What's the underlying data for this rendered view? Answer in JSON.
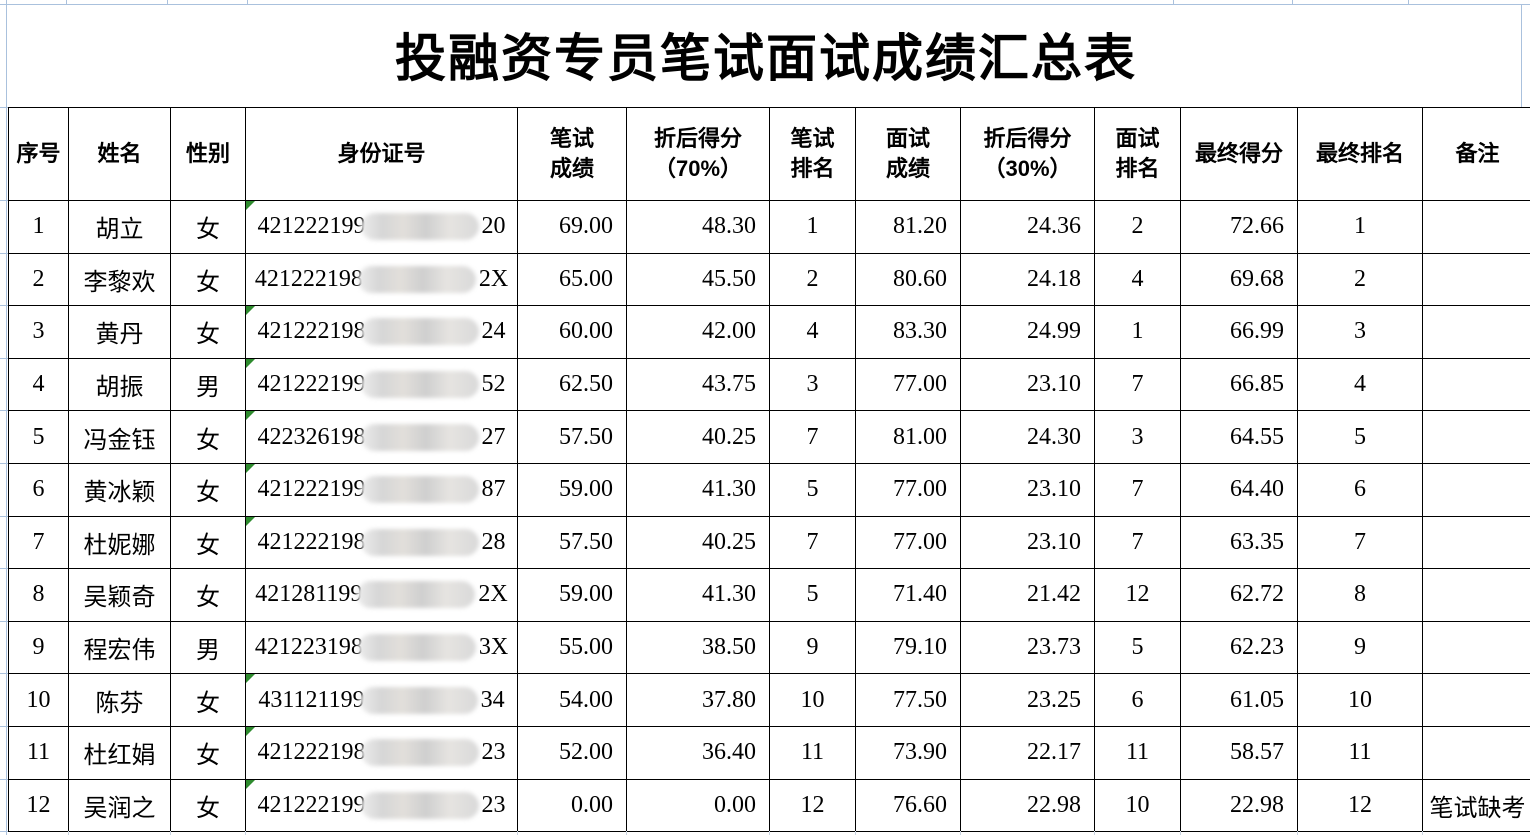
{
  "page": {
    "title": "投融资专员笔试面试成绩汇总表"
  },
  "colors": {
    "table_border": "#000000",
    "gridline_blue": "#aac1dd",
    "gridline_gray": "#c9d3e0",
    "flag_green": "#2e8b2e"
  },
  "table": {
    "columns": [
      {
        "key": "no",
        "label": "序号"
      },
      {
        "key": "name",
        "label": "姓名"
      },
      {
        "key": "gender",
        "label": "性别"
      },
      {
        "key": "id",
        "label": "身份证号"
      },
      {
        "key": "written",
        "label": "笔试\n成绩"
      },
      {
        "key": "weighted70",
        "label": "折后得分\n（70%）"
      },
      {
        "key": "written_rank",
        "label": "笔试\n排名"
      },
      {
        "key": "interview",
        "label": "面试\n成绩"
      },
      {
        "key": "weighted30",
        "label": "折后得分\n（30%）"
      },
      {
        "key": "interview_rank",
        "label": "面试\n排名"
      },
      {
        "key": "final",
        "label": "最终得分"
      },
      {
        "key": "final_rank",
        "label": "最终排名"
      },
      {
        "key": "remark",
        "label": "备注"
      }
    ],
    "rows": [
      {
        "no": "1",
        "name": "胡立",
        "gender": "女",
        "id_prefix": "421222199",
        "id_suffix": "20",
        "id_flag": true,
        "written": "69.00",
        "weighted70": "48.30",
        "written_rank": "1",
        "interview": "81.20",
        "weighted30": "24.36",
        "interview_rank": "2",
        "final": "72.66",
        "final_rank": "1",
        "remark": ""
      },
      {
        "no": "2",
        "name": "李黎欢",
        "gender": "女",
        "id_prefix": "421222198",
        "id_suffix": "2X",
        "id_flag": false,
        "written": "65.00",
        "weighted70": "45.50",
        "written_rank": "2",
        "interview": "80.60",
        "weighted30": "24.18",
        "interview_rank": "4",
        "final": "69.68",
        "final_rank": "2",
        "remark": ""
      },
      {
        "no": "3",
        "name": "黄丹",
        "gender": "女",
        "id_prefix": "421222198",
        "id_suffix": "24",
        "id_flag": true,
        "written": "60.00",
        "weighted70": "42.00",
        "written_rank": "4",
        "interview": "83.30",
        "weighted30": "24.99",
        "interview_rank": "1",
        "final": "66.99",
        "final_rank": "3",
        "remark": ""
      },
      {
        "no": "4",
        "name": "胡振",
        "gender": "男",
        "id_prefix": "421222199",
        "id_suffix": "52",
        "id_flag": true,
        "written": "62.50",
        "weighted70": "43.75",
        "written_rank": "3",
        "interview": "77.00",
        "weighted30": "23.10",
        "interview_rank": "7",
        "final": "66.85",
        "final_rank": "4",
        "remark": ""
      },
      {
        "no": "5",
        "name": "冯金钰",
        "gender": "女",
        "id_prefix": "422326198",
        "id_suffix": "27",
        "id_flag": true,
        "written": "57.50",
        "weighted70": "40.25",
        "written_rank": "7",
        "interview": "81.00",
        "weighted30": "24.30",
        "interview_rank": "3",
        "final": "64.55",
        "final_rank": "5",
        "remark": ""
      },
      {
        "no": "6",
        "name": "黄冰颖",
        "gender": "女",
        "id_prefix": "421222199",
        "id_suffix": "87",
        "id_flag": true,
        "written": "59.00",
        "weighted70": "41.30",
        "written_rank": "5",
        "interview": "77.00",
        "weighted30": "23.10",
        "interview_rank": "7",
        "final": "64.40",
        "final_rank": "6",
        "remark": ""
      },
      {
        "no": "7",
        "name": "杜妮娜",
        "gender": "女",
        "id_prefix": "421222198",
        "id_suffix": "28",
        "id_flag": true,
        "written": "57.50",
        "weighted70": "40.25",
        "written_rank": "7",
        "interview": "77.00",
        "weighted30": "23.10",
        "interview_rank": "7",
        "final": "63.35",
        "final_rank": "7",
        "remark": ""
      },
      {
        "no": "8",
        "name": "吴颖奇",
        "gender": "女",
        "id_prefix": "421281199",
        "id_suffix": "2X",
        "id_flag": false,
        "written": "59.00",
        "weighted70": "41.30",
        "written_rank": "5",
        "interview": "71.40",
        "weighted30": "21.42",
        "interview_rank": "12",
        "final": "62.72",
        "final_rank": "8",
        "remark": ""
      },
      {
        "no": "9",
        "name": "程宏伟",
        "gender": "男",
        "id_prefix": "421223198",
        "id_suffix": "3X",
        "id_flag": false,
        "written": "55.00",
        "weighted70": "38.50",
        "written_rank": "9",
        "interview": "79.10",
        "weighted30": "23.73",
        "interview_rank": "5",
        "final": "62.23",
        "final_rank": "9",
        "remark": ""
      },
      {
        "no": "10",
        "name": "陈芬",
        "gender": "女",
        "id_prefix": "431121199",
        "id_suffix": "34",
        "id_flag": true,
        "written": "54.00",
        "weighted70": "37.80",
        "written_rank": "10",
        "interview": "77.50",
        "weighted30": "23.25",
        "interview_rank": "6",
        "final": "61.05",
        "final_rank": "10",
        "remark": ""
      },
      {
        "no": "11",
        "name": "杜红娟",
        "gender": "女",
        "id_prefix": "421222198",
        "id_suffix": "23",
        "id_flag": true,
        "written": "52.00",
        "weighted70": "36.40",
        "written_rank": "11",
        "interview": "73.90",
        "weighted30": "22.17",
        "interview_rank": "11",
        "final": "58.57",
        "final_rank": "11",
        "remark": ""
      },
      {
        "no": "12",
        "name": "吴润之",
        "gender": "女",
        "id_prefix": "421222199",
        "id_suffix": "23",
        "id_flag": true,
        "written": "0.00",
        "weighted70": "0.00",
        "written_rank": "12",
        "interview": "76.60",
        "weighted30": "22.98",
        "interview_rank": "10",
        "final": "22.98",
        "final_rank": "12",
        "remark": "笔试缺考"
      }
    ]
  }
}
